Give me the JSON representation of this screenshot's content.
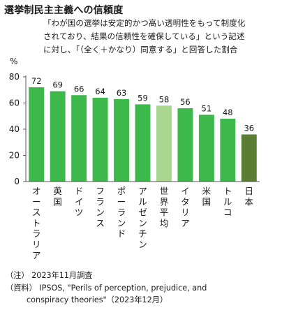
{
  "title": "選挙制民主主義への信頼度",
  "subtitle": "「わが国の選挙は安定的かつ高い透明性をもって制度化されており、結果の信頼性を確保している」という記述に対し、「（全く＋かなり）同意する」と回答した割合",
  "colors": {
    "bar": "#3db84a",
    "world_average": "#a9d68f",
    "japan": "#5a7d33",
    "axis": "#555555"
  },
  "chart_data": {
    "type": "bar",
    "ylabel": "%",
    "ylim": [
      0,
      80
    ],
    "yticks": [
      0,
      20,
      40,
      60,
      80
    ],
    "categories": [
      "オーストラリア",
      "英国",
      "ドイツ",
      "フランス",
      "ポーランド",
      "アルゼンチン",
      "世界平均",
      "イタリア",
      "米国",
      "トルコ",
      "日本"
    ],
    "values": [
      72,
      69,
      66,
      64,
      63,
      59,
      58,
      56,
      51,
      48,
      36
    ],
    "highlight": {
      "world_average": "世界平均",
      "japan": "日本"
    }
  },
  "notes": [
    "（注） 2023年11月調査",
    "（資料） IPSOS, \"Perils of perception, prejudice, and",
    "conspiracy theories\"（2023年12月）"
  ]
}
